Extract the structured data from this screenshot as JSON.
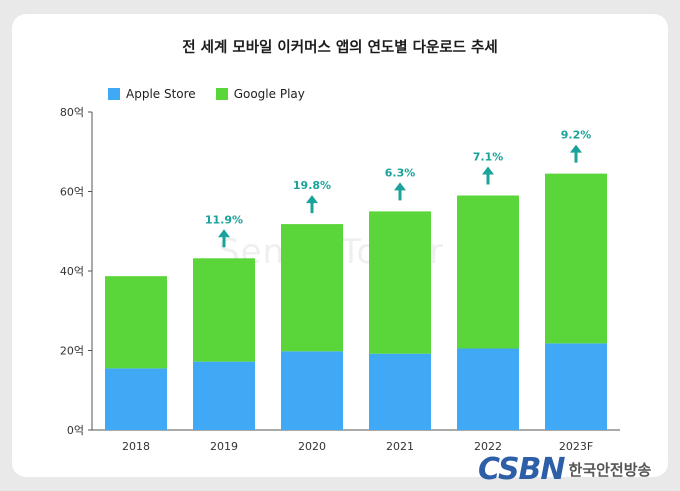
{
  "chart_data": {
    "type": "bar",
    "title": "전 세계 모바일 이커머스 앱의 연도별 다운로드 추세",
    "categories": [
      "2018",
      "2019",
      "2020",
      "2021",
      "2022",
      "2023F"
    ],
    "series": [
      {
        "name": "Apple Store",
        "values": [
          15.5,
          17.2,
          19.8,
          19.2,
          20.5,
          21.8
        ]
      },
      {
        "name": "Google Play",
        "values": [
          23.2,
          26.0,
          32.0,
          35.8,
          38.5,
          42.7
        ]
      }
    ],
    "growth_labels": [
      "",
      "11.9%",
      "19.8%",
      "6.3%",
      "7.1%",
      "9.2%"
    ],
    "ylim": [
      0,
      80
    ],
    "yticks": [
      "0억",
      "20억",
      "40억",
      "60억",
      "80억"
    ],
    "colors": {
      "Apple Store": "#3fa9f5",
      "Google Play": "#5bd63a",
      "growth": "#1aa39a"
    },
    "legend_position": "top-left",
    "grid": false
  },
  "watermark": "SensorTower",
  "brand": {
    "mark": "CSBN",
    "name": "한국안전방송"
  }
}
